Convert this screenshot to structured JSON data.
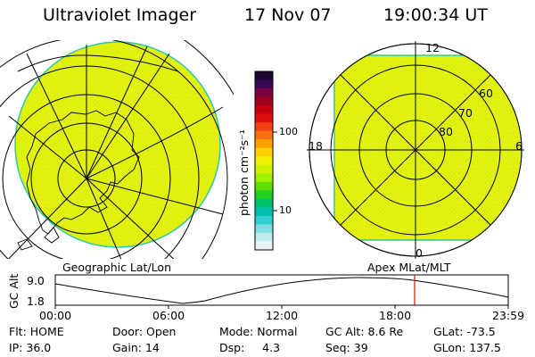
{
  "header": {
    "instrument": "Ultraviolet Imager",
    "date": "17 Nov 07",
    "time": "19:00:34 UT"
  },
  "left_panel": {
    "caption": "Geographic Lat/Lon"
  },
  "right_panel": {
    "caption": "Apex MLat/MLT",
    "mlt_labels": {
      "top": "12",
      "left": "18",
      "right": "6",
      "bottom": "0"
    },
    "mlat_labels": [
      "60",
      "70",
      "80"
    ]
  },
  "colorbar": {
    "unit_label": "photon cm⁻²s⁻¹",
    "tick_labels": [
      "100",
      "10"
    ],
    "colors": [
      "#1a0830",
      "#3a0850",
      "#7a0040",
      "#a00020",
      "#c80010",
      "#e01010",
      "#f04010",
      "#f87010",
      "#ffa000",
      "#ffd000",
      "#f0f000",
      "#d0f000",
      "#a0f000",
      "#60e000",
      "#20d020",
      "#00c070",
      "#00c0b0",
      "#30d0d0",
      "#80e0e0",
      "#c0ecec",
      "#e8f4f4"
    ]
  },
  "altitude_plot": {
    "ylabel": "GC Alt",
    "y_ticks": [
      "9.0",
      "1.8"
    ],
    "x_ticks": [
      "00:00",
      "06:00",
      "12:00",
      "18:00",
      "23:59"
    ],
    "current_time_marker": "19:00"
  },
  "footer": {
    "row1": [
      {
        "label": "Flt:",
        "value": "HOME"
      },
      {
        "label": "Door:",
        "value": "Open"
      },
      {
        "label": "Mode:",
        "value": "Normal"
      },
      {
        "label": "GC Alt:",
        "value": "8.6 Re"
      },
      {
        "label": "GLat:",
        "value": "-73.5"
      }
    ],
    "row2": [
      {
        "label": "IP:",
        "value": "36.0"
      },
      {
        "label": "Gain:",
        "value": "14"
      },
      {
        "label": "Dsp:",
        "value": "4.3"
      },
      {
        "label": "Seq:",
        "value": "39"
      },
      {
        "label": "GLon:",
        "value": "137.5"
      }
    ]
  },
  "colors": {
    "image_fill": "#e4f20a",
    "image_edge": "#2ec8b0",
    "grid": "#000000",
    "time_marker": "#ff0000"
  }
}
